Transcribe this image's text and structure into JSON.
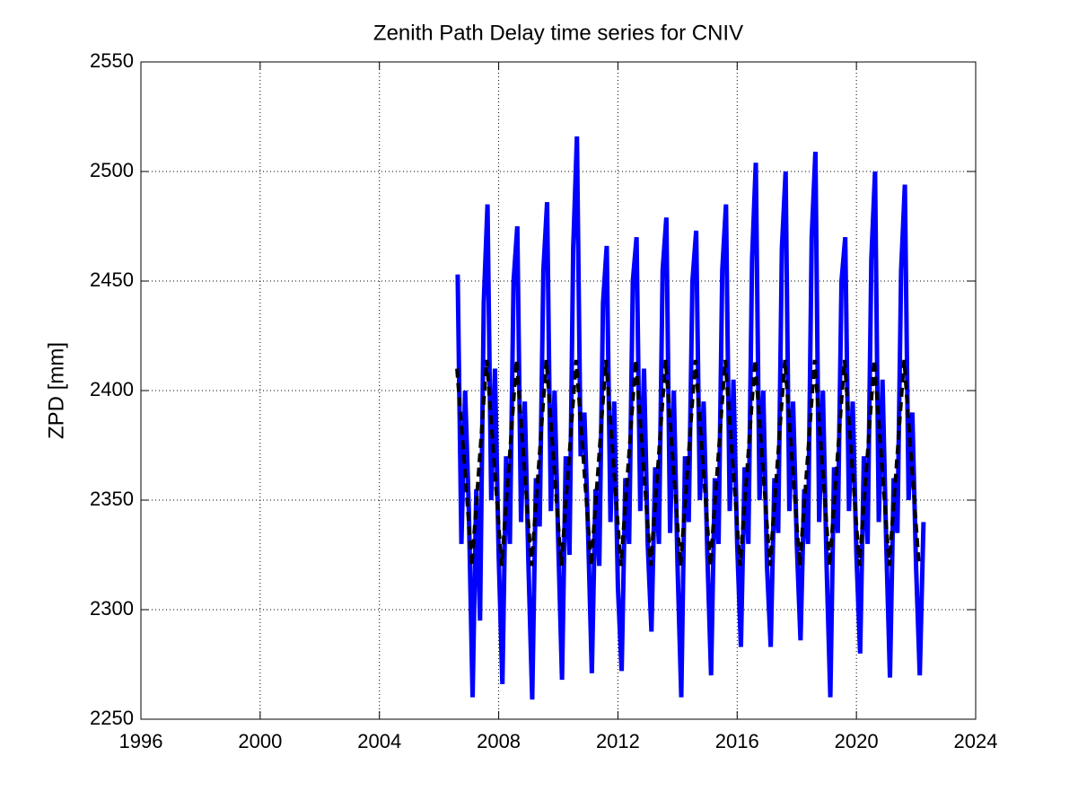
{
  "chart_data": {
    "type": "line",
    "title": "Zenith Path Delay time series for CNIV",
    "ylabel": "ZPD [mm]",
    "xlim": [
      1996,
      2024
    ],
    "xticks": [
      1996,
      2000,
      2004,
      2008,
      2012,
      2016,
      2020,
      2024
    ],
    "ylim": [
      2250,
      2550
    ],
    "yticks": [
      2250,
      2300,
      2350,
      2400,
      2450,
      2500,
      2550
    ],
    "grid": true,
    "series": [
      {
        "color": "#0000ff",
        "dash": false,
        "x": [
          2006.625,
          2006.75,
          2006.875,
          2007,
          2007.125,
          2007.25,
          2007.375,
          2007.5,
          2007.625,
          2007.75,
          2007.875,
          2008,
          2008.125,
          2008.25,
          2008.375,
          2008.5,
          2008.625,
          2008.75,
          2008.875,
          2009,
          2009.125,
          2009.25,
          2009.375,
          2009.5,
          2009.625,
          2009.75,
          2009.875,
          2010,
          2010.125,
          2010.25,
          2010.375,
          2010.5,
          2010.625,
          2010.75,
          2010.875,
          2011,
          2011.125,
          2011.25,
          2011.375,
          2011.5,
          2011.625,
          2011.75,
          2011.875,
          2012,
          2012.125,
          2012.25,
          2012.375,
          2012.5,
          2012.625,
          2012.75,
          2012.875,
          2013,
          2013.125,
          2013.25,
          2013.375,
          2013.5,
          2013.625,
          2013.75,
          2013.875,
          2014,
          2014.125,
          2014.25,
          2014.375,
          2014.5,
          2014.625,
          2014.75,
          2014.875,
          2015,
          2015.125,
          2015.25,
          2015.375,
          2015.5,
          2015.625,
          2015.75,
          2015.875,
          2016,
          2016.125,
          2016.25,
          2016.375,
          2016.5,
          2016.625,
          2016.75,
          2016.875,
          2017,
          2017.125,
          2017.25,
          2017.375,
          2017.5,
          2017.625,
          2017.75,
          2017.875,
          2018,
          2018.125,
          2018.25,
          2018.375,
          2018.5,
          2018.625,
          2018.75,
          2018.875,
          2019,
          2019.125,
          2019.25,
          2019.375,
          2019.5,
          2019.625,
          2019.75,
          2019.875,
          2020,
          2020.125,
          2020.25,
          2020.375,
          2020.5,
          2020.625,
          2020.75,
          2020.875,
          2021,
          2021.125,
          2021.25,
          2021.375,
          2021.5,
          2021.625,
          2021.75,
          2021.875,
          2022,
          2022.125,
          2022.25
        ],
        "values": [
          2453,
          2330,
          2400,
          2345,
          2260,
          2355,
          2295,
          2440,
          2485,
          2350,
          2410,
          2325,
          2266,
          2370,
          2330,
          2450,
          2475,
          2340,
          2395,
          2320,
          2259,
          2360,
          2338,
          2455,
          2486,
          2345,
          2400,
          2330,
          2268,
          2370,
          2325,
          2465,
          2516,
          2370,
          2390,
          2335,
          2271,
          2355,
          2320,
          2440,
          2466,
          2340,
          2395,
          2310,
          2272,
          2360,
          2330,
          2450,
          2470,
          2345,
          2410,
          2330,
          2290,
          2365,
          2330,
          2455,
          2479,
          2335,
          2400,
          2320,
          2260,
          2370,
          2340,
          2450,
          2473,
          2350,
          2395,
          2325,
          2270,
          2360,
          2330,
          2455,
          2485,
          2345,
          2405,
          2330,
          2283,
          2365,
          2330,
          2460,
          2504,
          2350,
          2400,
          2320,
          2283,
          2360,
          2335,
          2465,
          2500,
          2345,
          2395,
          2330,
          2286,
          2355,
          2330,
          2470,
          2509,
          2340,
          2400,
          2320,
          2260,
          2365,
          2335,
          2450,
          2470,
          2345,
          2395,
          2325,
          2280,
          2370,
          2330,
          2460,
          2500,
          2340,
          2405,
          2330,
          2269,
          2360,
          2335,
          2455,
          2494,
          2350,
          2390,
          2320,
          2270,
          2340
        ]
      },
      {
        "color": "#000000",
        "dash": true,
        "x": [
          2006.6,
          2006.85,
          2007.1,
          2007.35,
          2007.6,
          2007.85,
          2008.1,
          2008.35,
          2008.6,
          2008.85,
          2009.1,
          2009.35,
          2009.6,
          2009.85,
          2010.1,
          2010.35,
          2010.6,
          2010.85,
          2011.1,
          2011.35,
          2011.6,
          2011.85,
          2012.1,
          2012.35,
          2012.6,
          2012.85,
          2013.1,
          2013.35,
          2013.6,
          2013.85,
          2014.1,
          2014.35,
          2014.6,
          2014.85,
          2015.1,
          2015.35,
          2015.6,
          2015.85,
          2016.1,
          2016.35,
          2016.6,
          2016.85,
          2017.1,
          2017.35,
          2017.6,
          2017.85,
          2018.1,
          2018.35,
          2018.6,
          2018.85,
          2019.1,
          2019.35,
          2019.6,
          2019.85,
          2020.1,
          2020.35,
          2020.6,
          2020.85,
          2021.1,
          2021.35,
          2021.6,
          2021.85,
          2022.1
        ],
        "values": [
          2410,
          2367,
          2320,
          2367,
          2414,
          2367,
          2320,
          2367,
          2414,
          2367,
          2320,
          2367,
          2414,
          2367,
          2320,
          2367,
          2414,
          2367,
          2320,
          2367,
          2414,
          2367,
          2320,
          2367,
          2414,
          2367,
          2320,
          2367,
          2414,
          2367,
          2320,
          2367,
          2414,
          2367,
          2320,
          2367,
          2414,
          2367,
          2320,
          2367,
          2414,
          2367,
          2320,
          2367,
          2414,
          2367,
          2320,
          2367,
          2414,
          2367,
          2320,
          2367,
          2414,
          2367,
          2320,
          2367,
          2414,
          2367,
          2320,
          2367,
          2414,
          2367,
          2320
        ]
      }
    ]
  }
}
